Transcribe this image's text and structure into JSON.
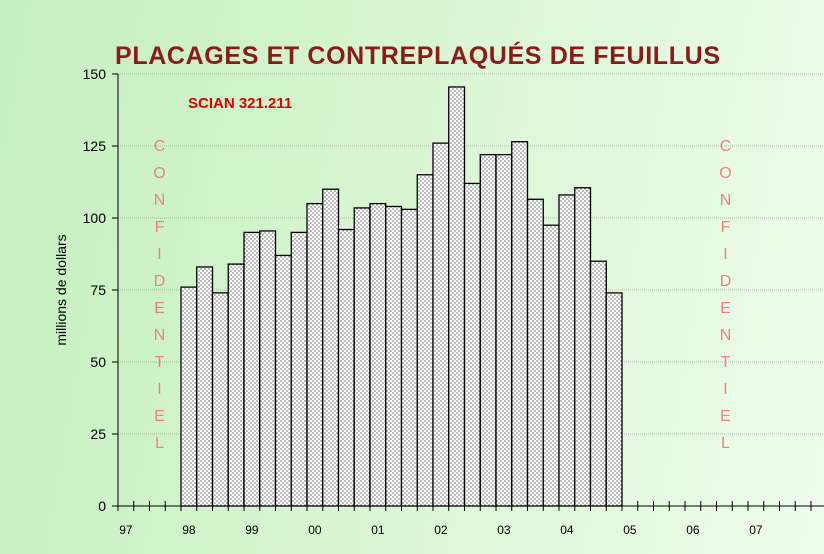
{
  "chart_data": {
    "type": "bar",
    "title": "PLACAGES ET CONTREPLAQUÉS DE FEUILLUS",
    "subtitle": "SCIAN 321.211",
    "y_label": "millions de dollars",
    "annotations": [
      "CONFIDENTIEL",
      "CONFIDENTIEL"
    ],
    "categories": [
      "97",
      null,
      null,
      null,
      "98",
      null,
      null,
      null,
      "99",
      null,
      null,
      null,
      "00",
      null,
      null,
      null,
      "01",
      null,
      null,
      null,
      "02",
      null,
      null,
      null,
      "03",
      null,
      null,
      null,
      "04",
      null,
      null,
      null,
      "05",
      null,
      null,
      null,
      "06",
      null,
      null,
      null,
      "07",
      null,
      null,
      null
    ],
    "values": [
      null,
      null,
      null,
      null,
      76,
      83,
      74,
      84,
      95,
      95.5,
      87,
      95,
      105,
      110,
      96,
      103.5,
      105,
      104,
      103,
      115,
      126,
      145.5,
      112,
      122,
      122,
      126.5,
      106.5,
      97.5,
      108,
      110.5,
      85,
      74,
      null,
      null,
      null,
      null,
      null,
      null,
      null,
      null,
      null,
      null,
      null,
      null
    ],
    "ylim": [
      0,
      150
    ],
    "yticks": [
      0,
      25,
      50,
      75,
      100,
      125,
      150
    ],
    "grid": true,
    "color": "#ffffff"
  }
}
